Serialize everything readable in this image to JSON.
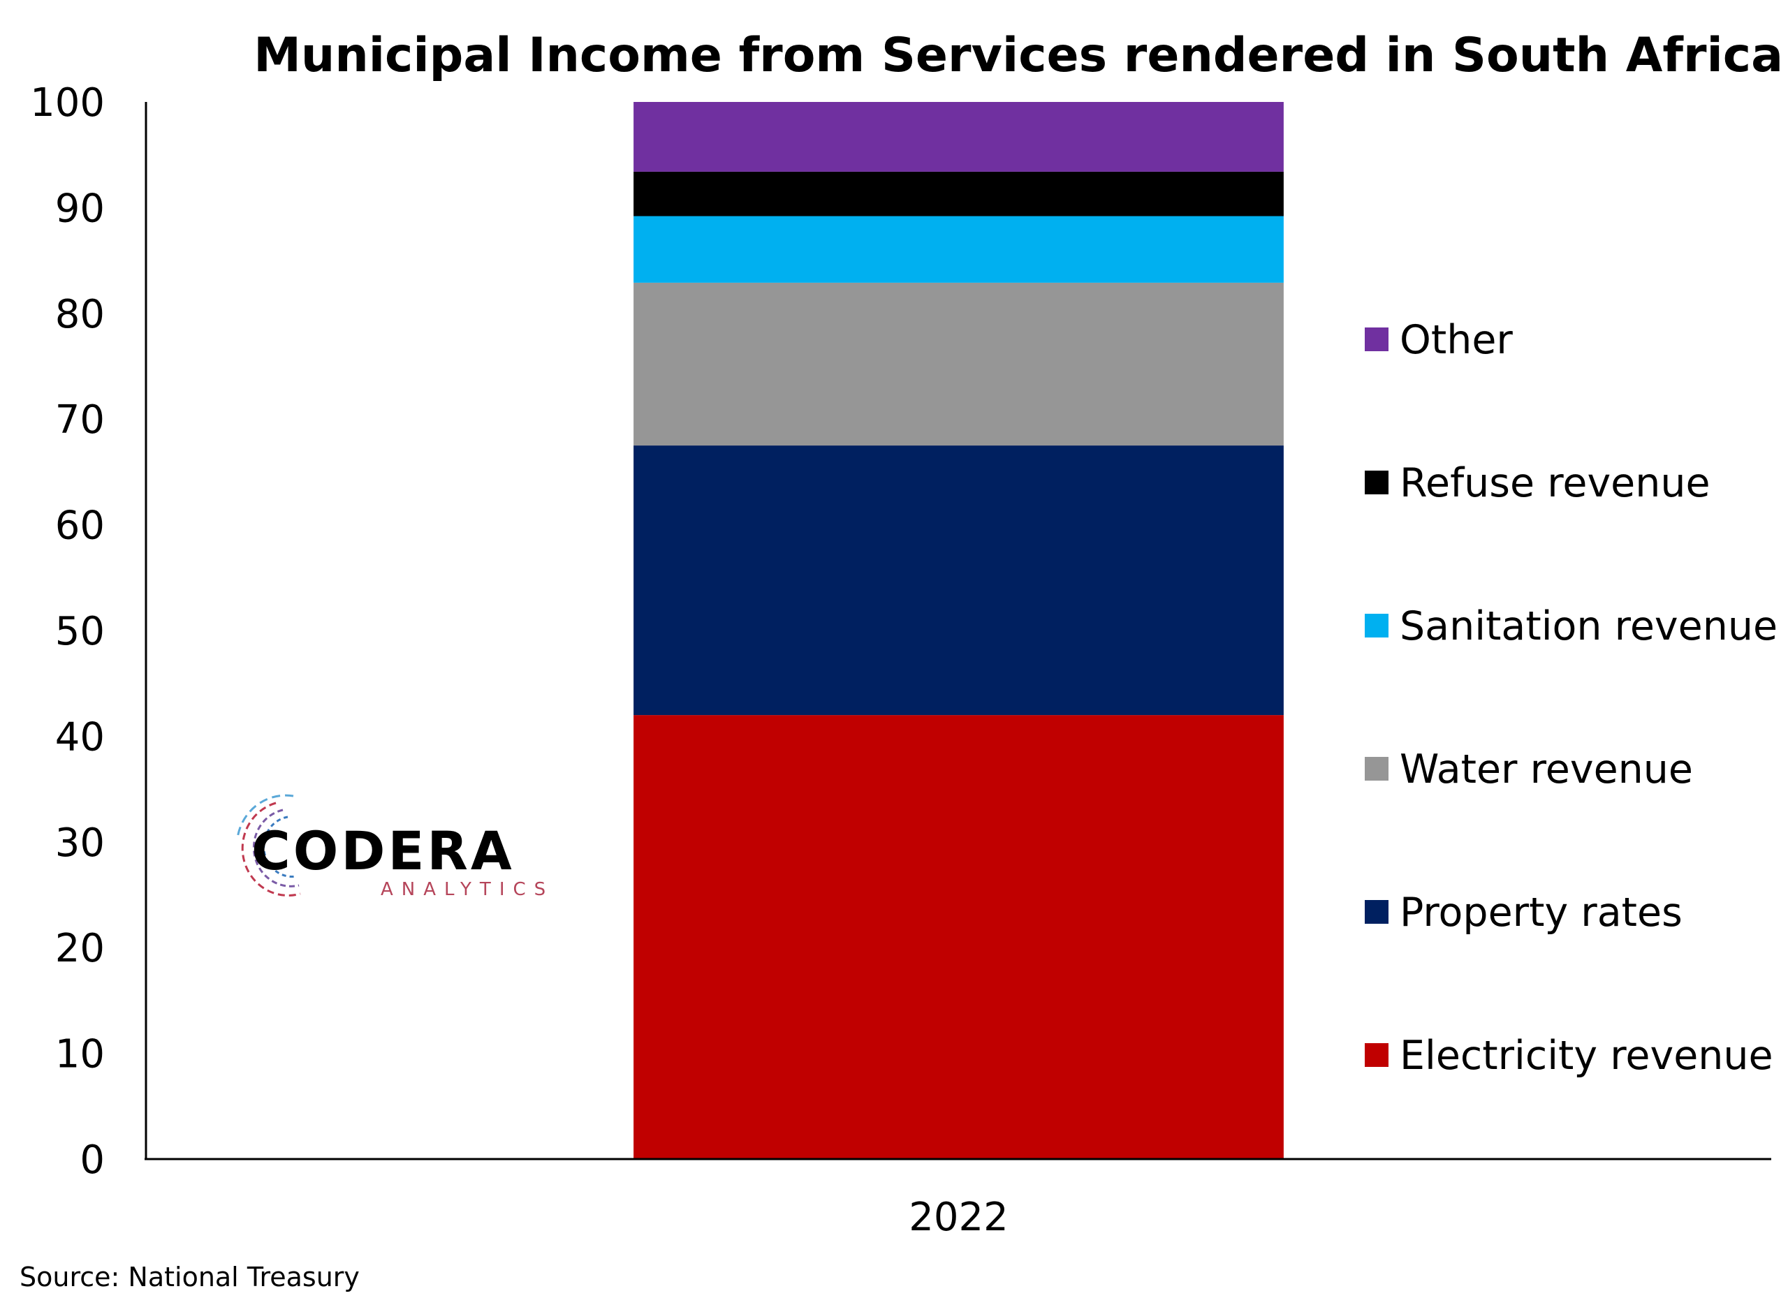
{
  "chart_data": {
    "type": "bar",
    "stacked": true,
    "title": "Municipal Income from Services rendered in South Africa",
    "categories": [
      "2022"
    ],
    "ylim": [
      0,
      100
    ],
    "yticks": [
      0,
      10,
      20,
      30,
      40,
      50,
      60,
      70,
      80,
      90,
      100
    ],
    "grid": false,
    "legend_position": "right",
    "series": [
      {
        "name": "Electricity revenue",
        "color": "#C00000",
        "values": [
          42.0
        ]
      },
      {
        "name": "Property rates",
        "color": "#002060",
        "values": [
          25.5
        ]
      },
      {
        "name": "Water revenue",
        "color": "#969696",
        "values": [
          15.4
        ]
      },
      {
        "name": "Sanitation revenue",
        "color": "#00B0F0",
        "values": [
          6.3
        ]
      },
      {
        "name": "Refuse revenue",
        "color": "#000000",
        "values": [
          4.2
        ]
      },
      {
        "name": "Other",
        "color": "#7030A0",
        "values": [
          6.6
        ]
      }
    ]
  },
  "logo": {
    "main": "CODERA",
    "sub": "ANALYTICS"
  },
  "source": "Source: National Treasury"
}
